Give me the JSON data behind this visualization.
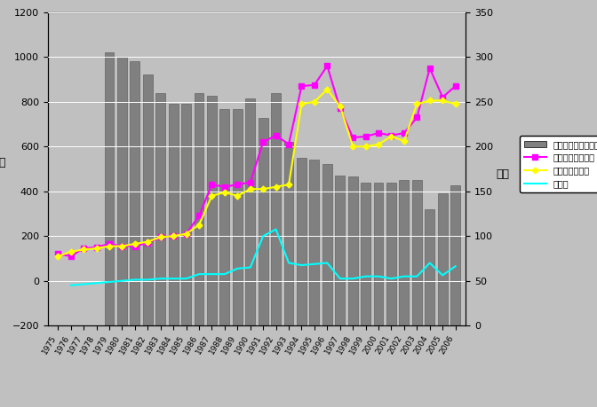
{
  "years": [
    1975,
    1976,
    1977,
    1978,
    1979,
    1980,
    1981,
    1982,
    1983,
    1984,
    1985,
    1986,
    1987,
    1988,
    1989,
    1990,
    1991,
    1992,
    1993,
    1994,
    1995,
    1996,
    1997,
    1998,
    1999,
    2000,
    2001,
    2002,
    2003,
    2004,
    2005,
    2006
  ],
  "bar_days": [
    0,
    0,
    0,
    0,
    305,
    300,
    295,
    280,
    260,
    248,
    248,
    260,
    257,
    242,
    242,
    254,
    232,
    260,
    205,
    187,
    185,
    180,
    168,
    167,
    160,
    160,
    160,
    163,
    163,
    130,
    148,
    157
  ],
  "bar_show": [
    false,
    false,
    false,
    false,
    true,
    true,
    true,
    true,
    true,
    true,
    true,
    true,
    true,
    true,
    true,
    true,
    true,
    true,
    true,
    true,
    true,
    true,
    true,
    true,
    true,
    true,
    true,
    true,
    true,
    true,
    true,
    true
  ],
  "selling_price": [
    120,
    110,
    145,
    150,
    165,
    155,
    155,
    170,
    195,
    200,
    210,
    290,
    430,
    420,
    430,
    440,
    620,
    650,
    610,
    870,
    875,
    960,
    770,
    640,
    645,
    660,
    650,
    660,
    730,
    950,
    820,
    870
  ],
  "production_cost": [
    110,
    130,
    140,
    145,
    155,
    155,
    165,
    175,
    195,
    200,
    210,
    250,
    380,
    395,
    380,
    410,
    410,
    420,
    430,
    790,
    800,
    855,
    780,
    600,
    600,
    610,
    645,
    625,
    790,
    805,
    805,
    790
  ],
  "profit": [
    null,
    -20,
    null,
    null,
    null,
    null,
    5,
    5,
    10,
    10,
    10,
    30,
    30,
    30,
    55,
    60,
    200,
    230,
    80,
    70,
    75,
    80,
    10,
    10,
    20,
    20,
    10,
    20,
    20,
    80,
    25,
    65
  ],
  "bar_color": "#808080",
  "selling_price_color": "#FF00FF",
  "production_cost_color": "#FFFF00",
  "profit_color": "#00FFFF",
  "background_color": "#C0C0C0",
  "plot_bg_color": "#C0C0C0",
  "left_ylim": [
    -200,
    1200
  ],
  "right_ylim": [
    0,
    350
  ],
  "left_yticks": [
    -200,
    0,
    200,
    400,
    600,
    800,
    1000,
    1200
  ],
  "right_yticks": [
    0,
    50,
    100,
    150,
    200,
    250,
    300,
    350
  ],
  "left_ylabel": "円",
  "right_ylabel": "日数",
  "legend_labels": [
    "平均飼育日数　右軸",
    "販売価格（産値）",
    "生産コスト全体",
    "純利潤"
  ]
}
